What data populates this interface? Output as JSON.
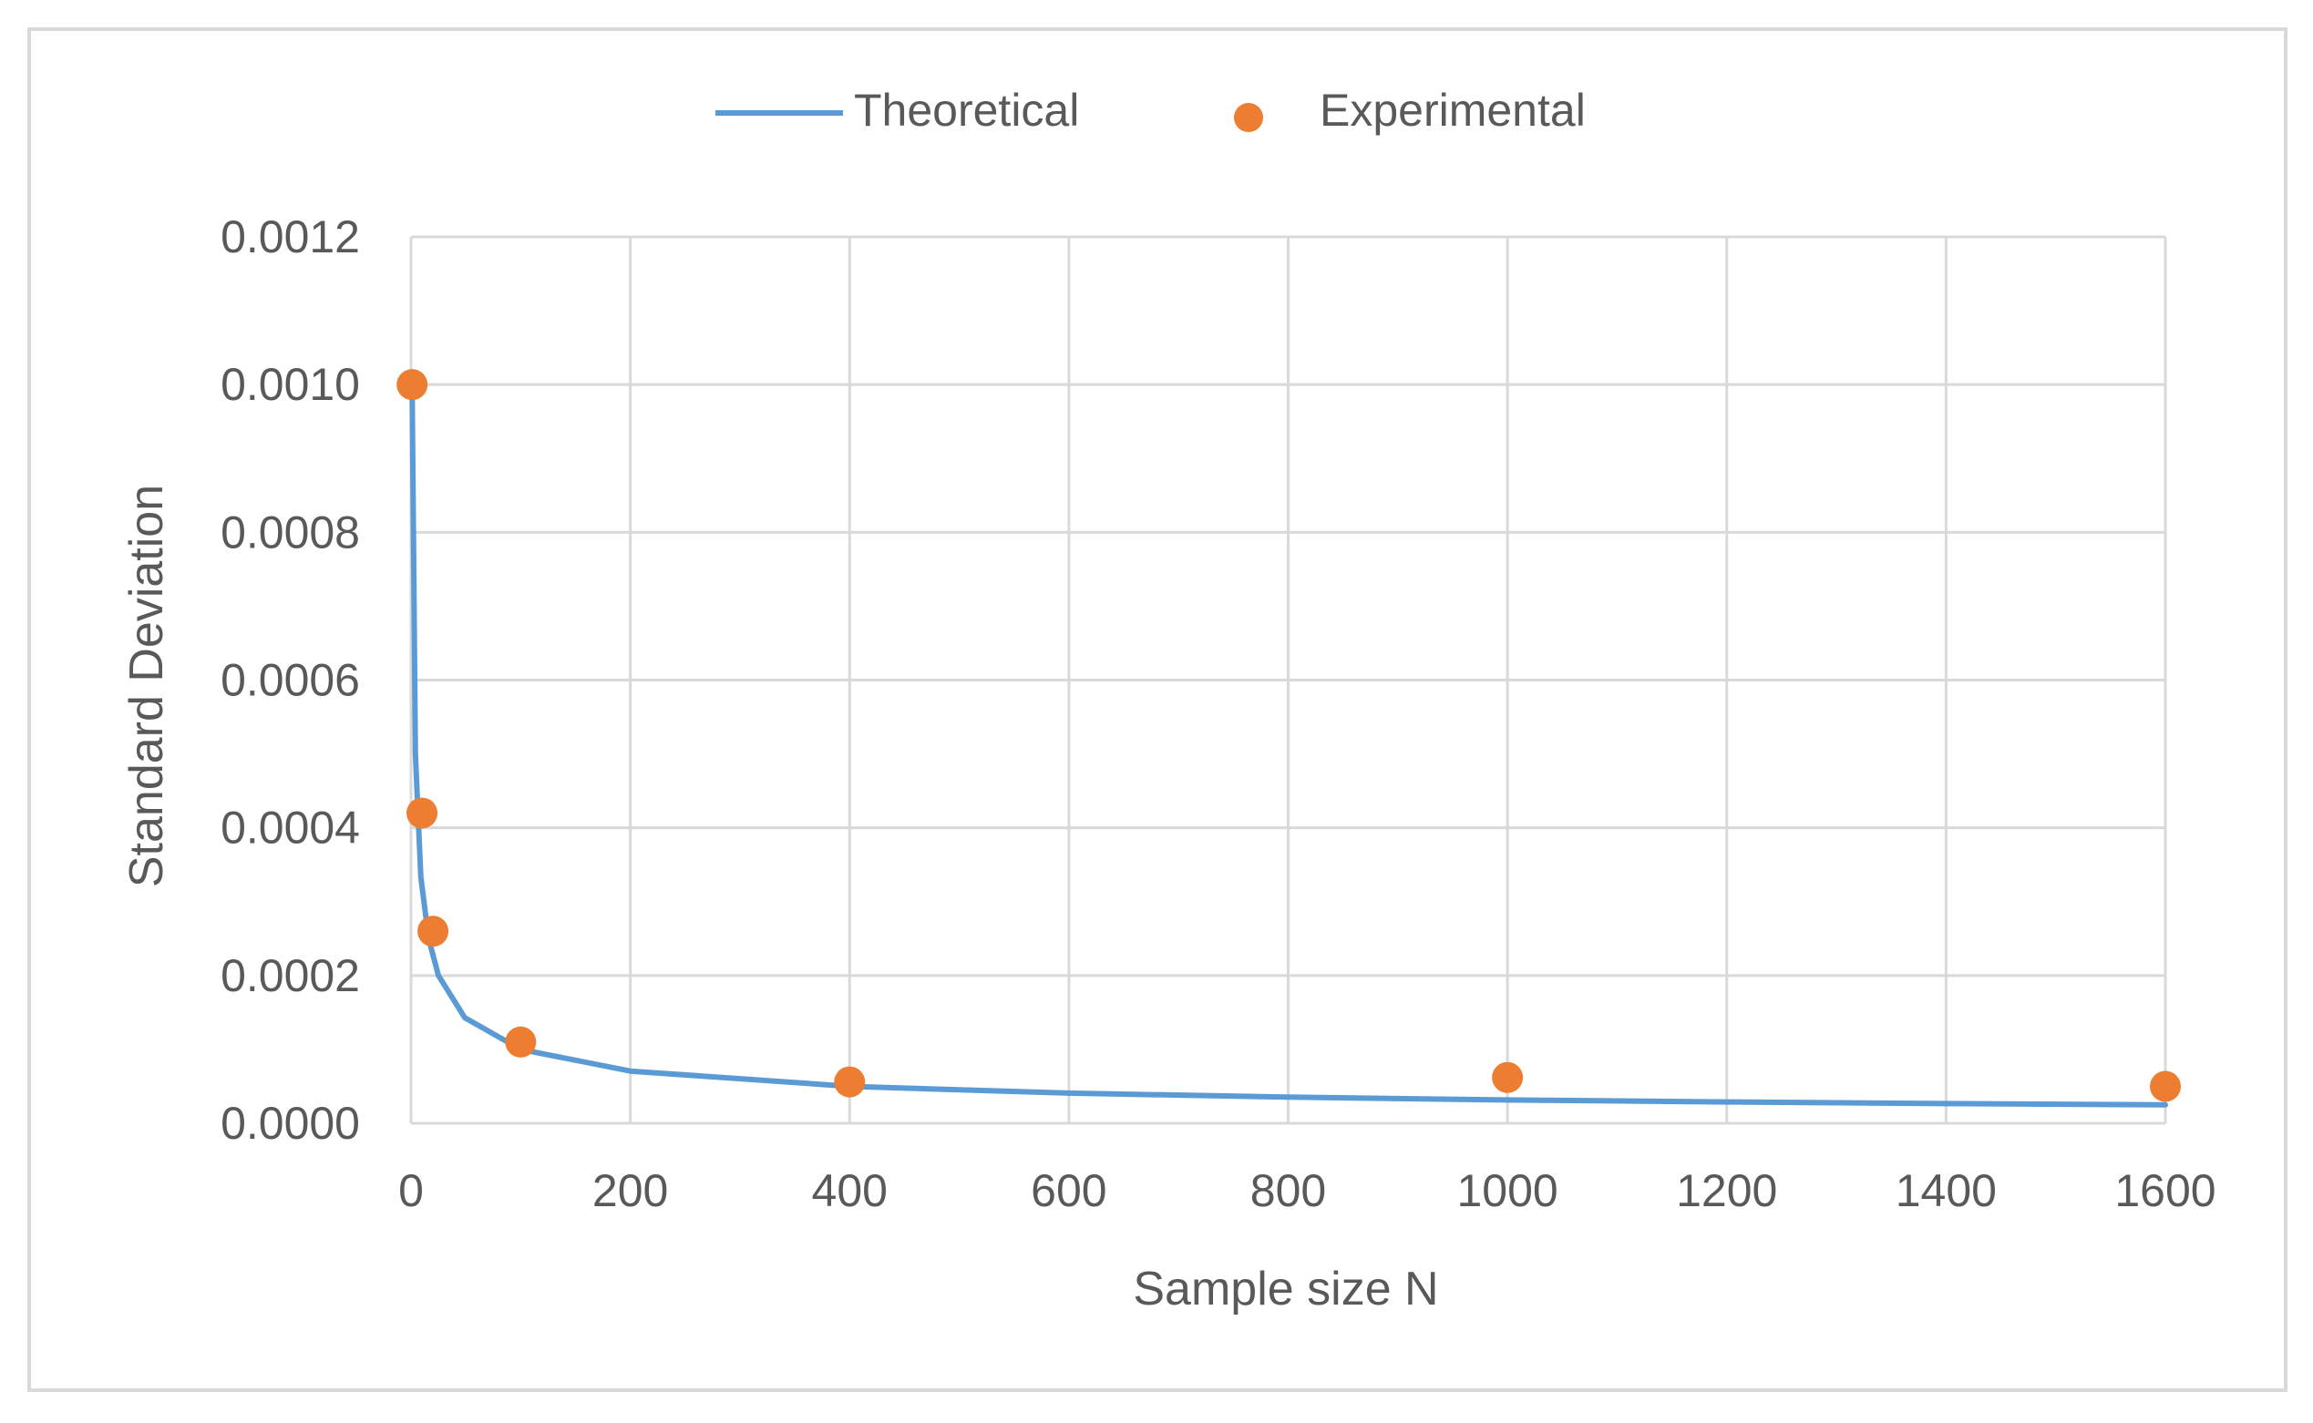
{
  "chart_data": {
    "type": "scatter",
    "title": "",
    "xlabel": "Sample size N",
    "ylabel": "Standard Deviation",
    "xlim": [
      0,
      1600
    ],
    "ylim": [
      0,
      0.0012
    ],
    "x_ticks": [
      "0",
      "200",
      "400",
      "600",
      "800",
      "1000",
      "1200",
      "1400",
      "1600"
    ],
    "y_ticks": [
      "0.0000",
      "0.0002",
      "0.0004",
      "0.0006",
      "0.0008",
      "0.0010",
      "0.0012"
    ],
    "grid": true,
    "legend_position": "top",
    "series": [
      {
        "name": "Theoretical",
        "kind": "line",
        "color": "#5b9bd5",
        "points": [
          [
            1,
            0.001
          ],
          [
            4,
            0.0005
          ],
          [
            9,
            0.000333
          ],
          [
            16,
            0.00025
          ],
          [
            25,
            0.0002
          ],
          [
            49,
            0.000143
          ],
          [
            100,
            0.0001
          ],
          [
            200,
            7.07e-05
          ],
          [
            400,
            5e-05
          ],
          [
            600,
            4.08e-05
          ],
          [
            800,
            3.54e-05
          ],
          [
            1000,
            3.16e-05
          ],
          [
            1200,
            2.89e-05
          ],
          [
            1400,
            2.67e-05
          ],
          [
            1600,
            2.5e-05
          ]
        ]
      },
      {
        "name": "Experimental",
        "kind": "marker",
        "color": "#ed7d31",
        "points": [
          [
            1,
            0.001
          ],
          [
            10,
            0.00042
          ],
          [
            20,
            0.00026
          ],
          [
            100,
            0.00011
          ],
          [
            400,
            5.6e-05
          ],
          [
            1000,
            6.2e-05
          ],
          [
            1600,
            5e-05
          ]
        ]
      }
    ]
  }
}
